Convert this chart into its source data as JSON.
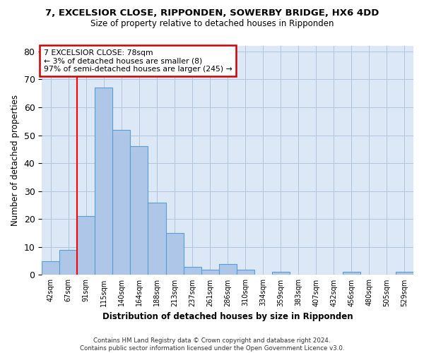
{
  "title_line1": "7, EXCELSIOR CLOSE, RIPPONDEN, SOWERBY BRIDGE, HX6 4DD",
  "title_line2": "Size of property relative to detached houses in Ripponden",
  "xlabel": "Distribution of detached houses by size in Ripponden",
  "ylabel": "Number of detached properties",
  "bar_values": [
    5,
    9,
    21,
    67,
    52,
    46,
    26,
    15,
    3,
    2,
    4,
    2,
    0,
    1,
    0,
    0,
    0,
    1,
    0,
    0,
    1
  ],
  "bar_labels": [
    "42sqm",
    "67sqm",
    "91sqm",
    "115sqm",
    "140sqm",
    "164sqm",
    "188sqm",
    "213sqm",
    "237sqm",
    "261sqm",
    "286sqm",
    "310sqm",
    "334sqm",
    "359sqm",
    "383sqm",
    "407sqm",
    "432sqm",
    "456sqm",
    "480sqm",
    "505sqm",
    "529sqm"
  ],
  "bar_color": "#aec6e8",
  "bar_edge_color": "#5a9fd4",
  "ylim": [
    0,
    82
  ],
  "yticks": [
    0,
    10,
    20,
    30,
    40,
    50,
    60,
    70,
    80
  ],
  "red_line_x": 1.5,
  "annotation_text": "7 EXCELSIOR CLOSE: 78sqm\n← 3% of detached houses are smaller (8)\n97% of semi-detached houses are larger (245) →",
  "annotation_box_color": "#ffffff",
  "annotation_box_edge": "#cc0000",
  "footer_line1": "Contains HM Land Registry data © Crown copyright and database right 2024.",
  "footer_line2": "Contains public sector information licensed under the Open Government Licence v3.0.",
  "background_color": "#dce8f5",
  "grid_color": "#b0c4de"
}
